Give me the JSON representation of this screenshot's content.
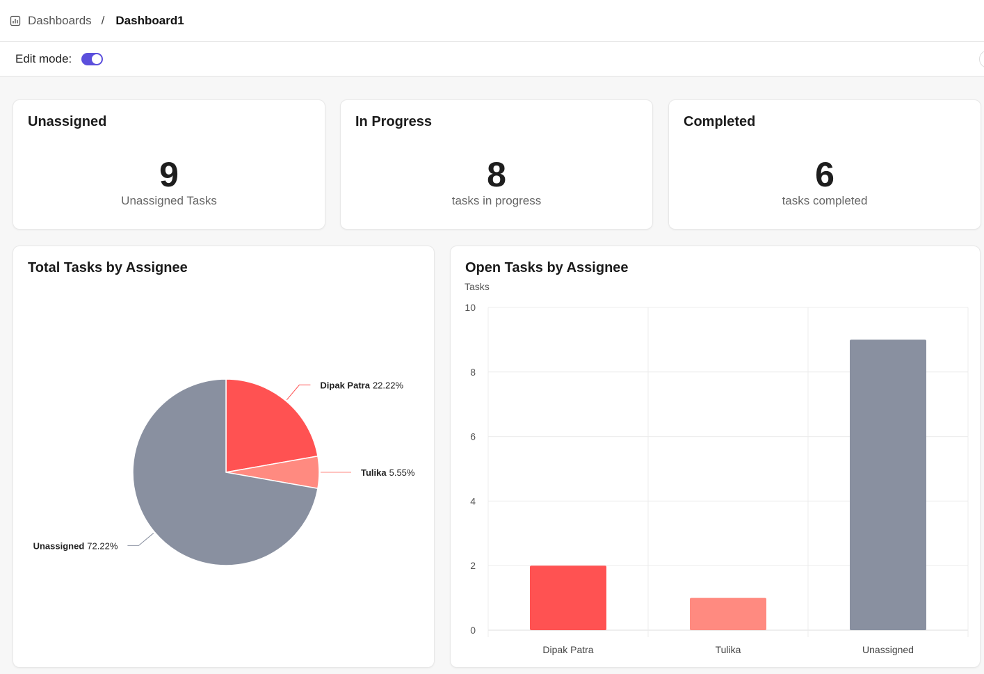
{
  "breadcrumb": {
    "root": "Dashboards",
    "separator": "/",
    "current": "Dashboard1"
  },
  "edit_mode": {
    "label": "Edit mode:",
    "enabled": true,
    "accent": "#5b4fdc"
  },
  "kpis": [
    {
      "title": "Unassigned",
      "value": "9",
      "subtitle": "Unassigned Tasks"
    },
    {
      "title": "In Progress",
      "value": "8",
      "subtitle": "tasks in progress"
    },
    {
      "title": "Completed",
      "value": "6",
      "subtitle": "tasks completed"
    }
  ],
  "chart_data": [
    {
      "type": "pie",
      "title": "Total Tasks by Assignee",
      "slices": [
        {
          "name": "Dipak Patra",
          "percent": 22.22,
          "label": "22.22%",
          "color": "#ff5252"
        },
        {
          "name": "Tulika",
          "percent": 5.55,
          "label": "5.55%",
          "color": "#ff8a80"
        },
        {
          "name": "Unassigned",
          "percent": 72.22,
          "label": "72.22%",
          "color": "#8990a0"
        }
      ]
    },
    {
      "type": "bar",
      "title": "Open Tasks by Assignee",
      "ylabel": "Tasks",
      "xlabel": "",
      "ylim": [
        0,
        10
      ],
      "yticks": [
        0,
        2,
        4,
        6,
        8,
        10
      ],
      "categories": [
        "Dipak Patra",
        "Tulika",
        "Unassigned"
      ],
      "values": [
        2,
        1,
        9
      ],
      "colors": [
        "#ff5252",
        "#ff8a80",
        "#8990a0"
      ],
      "grid": true
    }
  ]
}
